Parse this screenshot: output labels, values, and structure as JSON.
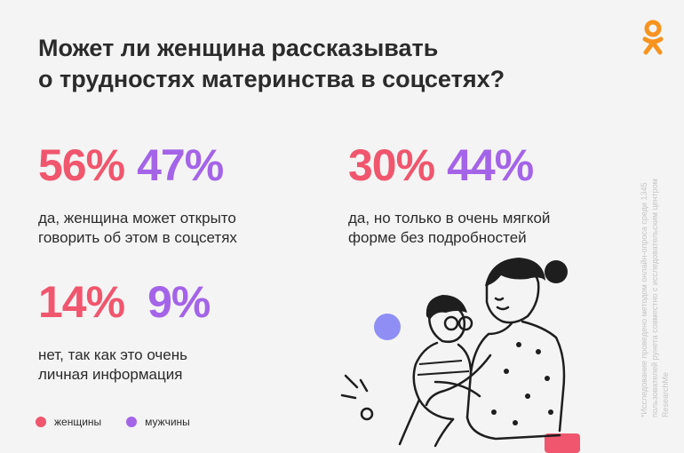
{
  "title": {
    "line1": "Может ли женщина рассказывать",
    "line2": "о трудностях материнства в соцсетях?"
  },
  "logo": {
    "icon": "ok-logo-icon",
    "color": "#f7931e"
  },
  "colors": {
    "women": "#f0566e",
    "men": "#a464e8"
  },
  "stats": [
    {
      "women": "56%",
      "men": "47%",
      "desc_line1": "да, женщина может открыто",
      "desc_line2": "говорить об этом в соцсетях"
    },
    {
      "women": "30%",
      "men": "44%",
      "desc_line1": "да, но только в очень мягкой",
      "desc_line2": "форме без подробностей"
    },
    {
      "women": "14%",
      "men": "9%",
      "desc_line1": "нет, так как это очень",
      "desc_line2": "личная информация"
    }
  ],
  "legend": {
    "women": "женщины",
    "men": "мужчины"
  },
  "footnote": {
    "line1": "*Исследование проведено методом онлайн-опроса среди 1345",
    "line2": "пользователей рунета совместно с исследовательским центром",
    "line3": "ResearchMe"
  }
}
